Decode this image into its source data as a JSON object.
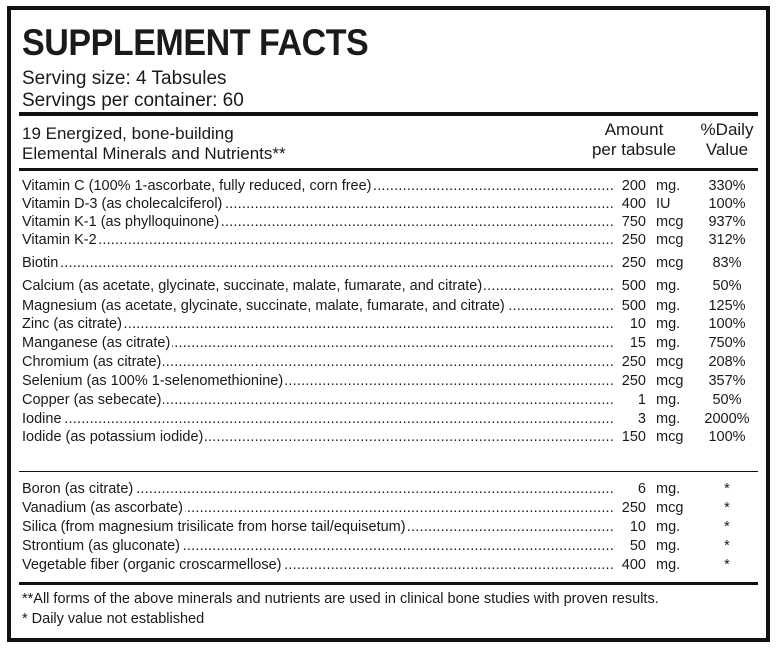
{
  "panel": {
    "title": "SUPPLEMENT FACTS",
    "serving_size": "Serving size: 4 Tabsules",
    "servings_per_container": "Servings per container: 60"
  },
  "header": {
    "desc_line1": "19 Energized, bone-building",
    "desc_line2": "Elemental Minerals and Nutrients**",
    "amount_line1": "Amount",
    "amount_line2": "per tabsule",
    "dv_line1": "%Daily",
    "dv_line2": "Value"
  },
  "nutrients": [
    {
      "name": "Vitamin C (100% 1-ascorbate, fully reduced, corn free)",
      "amount": "200",
      "unit": "mg.",
      "dv": "330%"
    },
    {
      "name": "Vitamin D-3 (as cholecalciferol)",
      "amount": "400",
      "unit": "IU",
      "dv": "100%"
    },
    {
      "name": "Vitamin K-1 (as phylloquinone)",
      "amount": "750",
      "unit": "mcg",
      "dv": "937%"
    },
    {
      "name": "Vitamin K-2",
      "amount": "250",
      "unit": "mcg",
      "dv": "312%"
    },
    {
      "name": "Biotin",
      "amount": "250",
      "unit": "mcg",
      "dv": "83%"
    },
    {
      "name": "Calcium (as acetate, glycinate, succinate, malate, fumarate, and citrate)",
      "amount": "500",
      "unit": "mg.",
      "dv": "50%"
    },
    {
      "name": "Magnesium (as acetate, glycinate, succinate, malate, fumarate, and citrate)",
      "amount": "500",
      "unit": "mg.",
      "dv": "125%"
    },
    {
      "name": "Zinc (as citrate)",
      "amount": "10",
      "unit": "mg.",
      "dv": "100%"
    },
    {
      "name": "Manganese (as citrate)",
      "amount": "15",
      "unit": "mg.",
      "dv": "750%"
    },
    {
      "name": "Chromium (as citrate)",
      "amount": "250",
      "unit": "mcg",
      "dv": "208%"
    },
    {
      "name": "Selenium (as 100% 1-selenomethionine)",
      "amount": "250",
      "unit": "mcg",
      "dv": "357%"
    },
    {
      "name": "Copper (as sebecate)",
      "amount": "1",
      "unit": "mg.",
      "dv": "50%"
    },
    {
      "name": "Iodine",
      "amount": "3",
      "unit": "mg.",
      "dv": "2000%"
    },
    {
      "name": "Iodide (as potassium iodide)",
      "amount": "150",
      "unit": "mcg",
      "dv": "100%"
    }
  ],
  "other_nutrients": [
    {
      "name": "Boron (as citrate)",
      "amount": "6",
      "unit": "mg.",
      "dv": "*"
    },
    {
      "name": "Vanadium (as ascorbate)",
      "amount": "250",
      "unit": "mcg",
      "dv": "*"
    },
    {
      "name": "Silica (from magnesium trisilicate from horse tail/equisetum)",
      "amount": "10",
      "unit": "mg.",
      "dv": "*"
    },
    {
      "name": "Strontium (as gluconate)",
      "amount": "50",
      "unit": "mg.",
      "dv": "*"
    },
    {
      "name": "Vegetable fiber (organic croscarmellose)",
      "amount": "400",
      "unit": "mg.",
      "dv": "*"
    }
  ],
  "footnotes": {
    "clinical": "**All forms of the above minerals and nutrients are used in clinical bone studies with proven results.",
    "daily_value": "* Daily value not established"
  }
}
